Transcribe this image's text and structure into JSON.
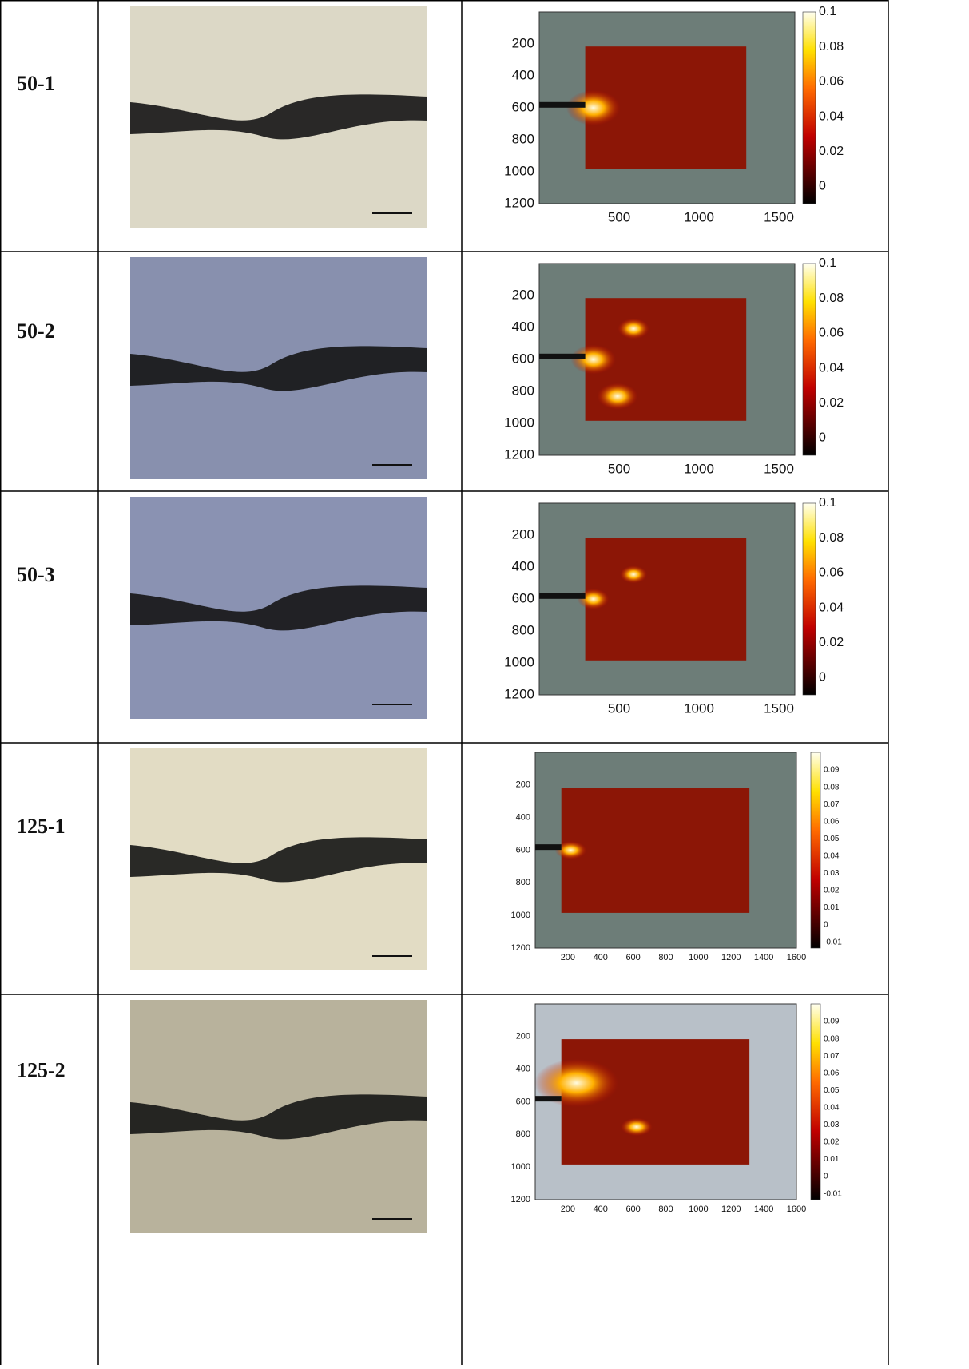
{
  "table": {
    "rows": [
      {
        "label": "50-1",
        "plot": {
          "yticks": [
            200,
            400,
            600,
            800,
            1000,
            1200
          ],
          "xticks": [
            500,
            1000,
            1500
          ],
          "colorbar_ticks": [
            0.1,
            0.08,
            0.06,
            0.04,
            0.02,
            0
          ]
        }
      },
      {
        "label": "50-2",
        "plot": {
          "yticks": [
            200,
            400,
            600,
            800,
            1000,
            1200
          ],
          "xticks": [
            500,
            1000,
            1500
          ],
          "colorbar_ticks": [
            0.1,
            0.08,
            0.06,
            0.04,
            0.02,
            0
          ]
        }
      },
      {
        "label": "50-3",
        "plot": {
          "yticks": [
            200,
            400,
            600,
            800,
            1000,
            1200
          ],
          "xticks": [
            500,
            1000,
            1500
          ],
          "colorbar_ticks": [
            0.1,
            0.08,
            0.06,
            0.04,
            0.02,
            0
          ]
        }
      },
      {
        "label": "125-1",
        "plot": {
          "yticks": [
            200,
            400,
            600,
            800,
            1000,
            1200
          ],
          "xticks": [
            200,
            400,
            600,
            800,
            1000,
            1200,
            1400,
            1600
          ],
          "colorbar_ticks": [
            0.09,
            0.08,
            0.07,
            0.06,
            0.05,
            0.04,
            0.03,
            0.02,
            0.01,
            0,
            -0.01
          ]
        }
      },
      {
        "label": "125-2",
        "plot": {
          "yticks": [
            200,
            400,
            600,
            800,
            1000,
            1200
          ],
          "xticks": [
            200,
            400,
            600,
            800,
            1000,
            1200,
            1400,
            1600
          ],
          "colorbar_ticks": [
            0.09,
            0.08,
            0.07,
            0.06,
            0.05,
            0.04,
            0.03,
            0.02,
            0.01,
            0,
            -0.01
          ]
        }
      }
    ]
  }
}
